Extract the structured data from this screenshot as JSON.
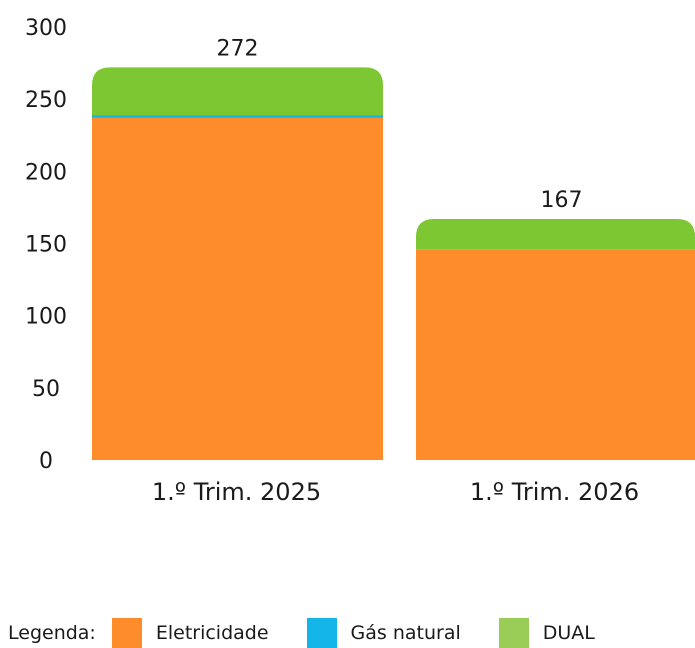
{
  "chart_data": {
    "type": "bar",
    "stacked": true,
    "categories": [
      "1.º Trim. 2025",
      "1.º Trim. 2026"
    ],
    "series": [
      {
        "name": "Eletricidade",
        "color": "#FF8C2A",
        "values": [
          237,
          146
        ]
      },
      {
        "name": "Gás natural",
        "color": "#14B6E8",
        "values": [
          2,
          0
        ]
      },
      {
        "name": "DUAL",
        "color": "#7DC832",
        "values": [
          33,
          21
        ]
      }
    ],
    "totals": [
      "272",
      "167"
    ],
    "yticks": [
      "300",
      "250",
      "200",
      "150",
      "100",
      "50",
      "0"
    ],
    "ylim": [
      0,
      300
    ],
    "grid": false
  },
  "legend": {
    "title": "Legenda:",
    "items": [
      {
        "label": "Eletricidade",
        "color": "#FF8C2A"
      },
      {
        "label": "Gás natural",
        "color": "#14B6E8"
      },
      {
        "label": "DUAL",
        "color": "#9ACD57"
      }
    ]
  }
}
